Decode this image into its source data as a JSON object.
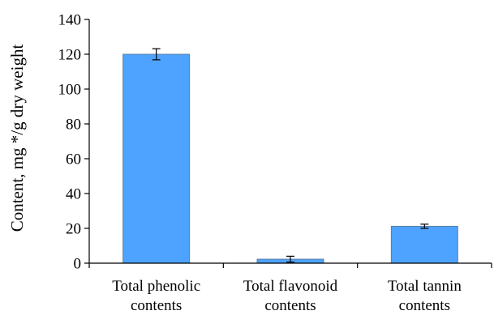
{
  "chart_data": {
    "type": "bar",
    "categories": [
      [
        "Total phenolic",
        "contents"
      ],
      [
        "Total flavonoid",
        "contents"
      ],
      [
        "Total tannin",
        "contents"
      ]
    ],
    "values": [
      120,
      2.3,
      21.2
    ],
    "error_bars": [
      3.2,
      1.7,
      1.2
    ],
    "ylabel": "Content, mg */g dry weight",
    "ylim": [
      0,
      140
    ],
    "yticks": [
      "0",
      "20",
      "40",
      "60",
      "80",
      "100",
      "120",
      "140"
    ],
    "ytick_values": [
      0,
      20,
      40,
      60,
      80,
      100,
      120,
      140
    ],
    "grid": false,
    "legend": "none",
    "bar_color": "#4da3ff",
    "bar_edge_color": "#5b7fa6",
    "axis_color": "#000000"
  }
}
